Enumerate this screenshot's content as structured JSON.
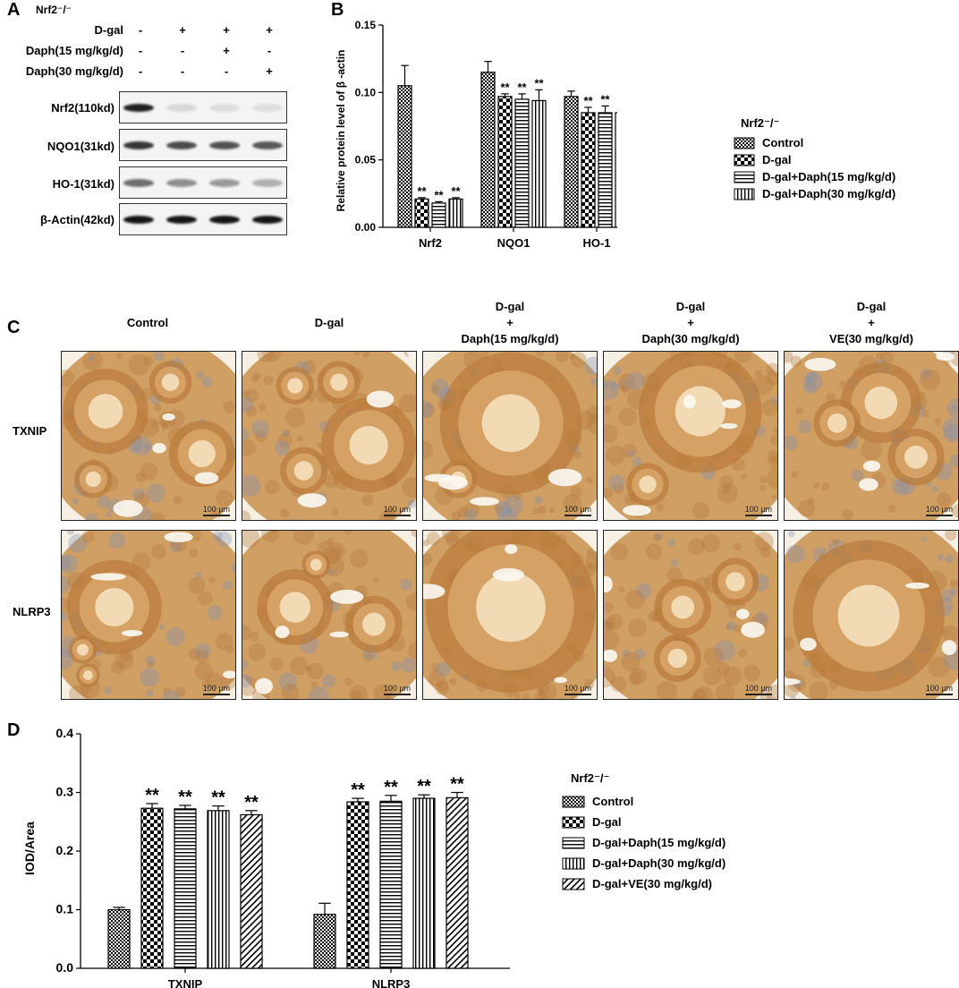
{
  "panel_letters": {
    "a": "A",
    "b": "B",
    "c": "C",
    "d": "D"
  },
  "western_blot": {
    "genotype": "Nrf2⁻/⁻",
    "treatments": [
      {
        "label": "D-gal",
        "signs": [
          "-",
          "+",
          "+",
          "+"
        ]
      },
      {
        "label": "Daph(15 mg/kg/d)",
        "signs": [
          "-",
          "-",
          "+",
          "-"
        ]
      },
      {
        "label": "Daph(30 mg/kg/d)",
        "signs": [
          "-",
          "-",
          "-",
          "+"
        ]
      }
    ],
    "blots": [
      {
        "label": "Nrf2(110kd)",
        "intensity": [
          0.95,
          0.12,
          0.1,
          0.1
        ]
      },
      {
        "label": "NQO1(31kd)",
        "intensity": [
          0.85,
          0.75,
          0.72,
          0.7
        ]
      },
      {
        "label": "HO-1(31kd)",
        "intensity": [
          0.6,
          0.45,
          0.4,
          0.3
        ]
      },
      {
        "label": "β-Actin(42kd)",
        "intensity": [
          1.0,
          1.0,
          1.0,
          1.0
        ]
      }
    ]
  },
  "ihc": {
    "columns": [
      {
        "line1": "Control",
        "line2": "",
        "line3": ""
      },
      {
        "line1": "D-gal",
        "line2": "",
        "line3": ""
      },
      {
        "line1": "D-gal",
        "line2": "+",
        "line3": "Daph(15 mg/kg/d)"
      },
      {
        "line1": "D-gal",
        "line2": "+",
        "line3": "Daph(30  mg/kg/d)"
      },
      {
        "line1": "D-gal",
        "line2": "+",
        "line3": "VE(30 mg/kg/d)"
      }
    ],
    "rows": [
      "TXNIP",
      "NLRP3"
    ],
    "scale_bar": "100 µm",
    "colors": {
      "background": "#f6f0e4",
      "tissue": "#c8904e",
      "hematoxylin": "#7f8fb2",
      "follicle": "#f3ddb8"
    }
  },
  "chart_data": [
    {
      "type": "bar",
      "ylabel": "Relative protein level of β -actin",
      "ylim": [
        0,
        0.15
      ],
      "yticks": [
        "0.00",
        "0.05",
        "0.10",
        "0.15"
      ],
      "categories": [
        "Nrf2",
        "NQO1",
        "HO-1"
      ],
      "legend_title": "Nrf2⁻/⁻",
      "legend_position": "right",
      "series": [
        {
          "name": "Control",
          "pattern": "check-small",
          "values": [
            0.105,
            0.115,
            0.097
          ],
          "errors": [
            0.015,
            0.008,
            0.004
          ],
          "marks": [
            "",
            "",
            ""
          ]
        },
        {
          "name": "D-gal",
          "pattern": "check-big",
          "values": [
            0.021,
            0.097,
            0.085
          ],
          "errors": [
            0.001,
            0.002,
            0.004
          ],
          "marks": [
            "**",
            "**",
            "**"
          ]
        },
        {
          "name": "D-gal+Daph(15 mg/kg/d)",
          "pattern": "hlines",
          "values": [
            0.018,
            0.095,
            0.085
          ],
          "errors": [
            0.001,
            0.004,
            0.005
          ],
          "marks": [
            "**",
            "**",
            "**"
          ]
        },
        {
          "name": "D-gal+Daph(30 mg/kg/d)",
          "pattern": "vlines",
          "values": [
            0.021,
            0.094,
            0.085
          ],
          "errors": [
            0.001,
            0.008,
            0.003
          ],
          "marks": [
            "**",
            "**",
            "**"
          ]
        }
      ]
    },
    {
      "type": "bar",
      "ylabel": "IOD/Area",
      "ylim": [
        0,
        0.4
      ],
      "yticks": [
        "0.0",
        "0.1",
        "0.2",
        "0.3",
        "0.4"
      ],
      "categories": [
        "TXNIP",
        "NLRP3"
      ],
      "legend_title": "Nrf2⁻/⁻",
      "legend_position": "right",
      "series": [
        {
          "name": "Control",
          "pattern": "check-small",
          "values": [
            0.1,
            0.092
          ],
          "errors": [
            0.004,
            0.019
          ],
          "marks": [
            "",
            ""
          ]
        },
        {
          "name": "D-gal",
          "pattern": "check-big",
          "values": [
            0.273,
            0.284
          ],
          "errors": [
            0.008,
            0.006
          ],
          "marks": [
            "**",
            "**"
          ]
        },
        {
          "name": "D-gal+Daph(15 mg/kg/d)",
          "pattern": "hlines",
          "values": [
            0.272,
            0.285
          ],
          "errors": [
            0.006,
            0.01
          ],
          "marks": [
            "**",
            "**"
          ]
        },
        {
          "name": "D-gal+Daph(30 mg/kg/d)",
          "pattern": "vlines",
          "values": [
            0.269,
            0.29
          ],
          "errors": [
            0.008,
            0.006
          ],
          "marks": [
            "**",
            "**"
          ]
        },
        {
          "name": "D-gal+VE(30 mg/kg/d)",
          "pattern": "diag",
          "values": [
            0.262,
            0.291
          ],
          "errors": [
            0.007,
            0.009
          ],
          "marks": [
            "**",
            "**"
          ]
        }
      ]
    }
  ]
}
